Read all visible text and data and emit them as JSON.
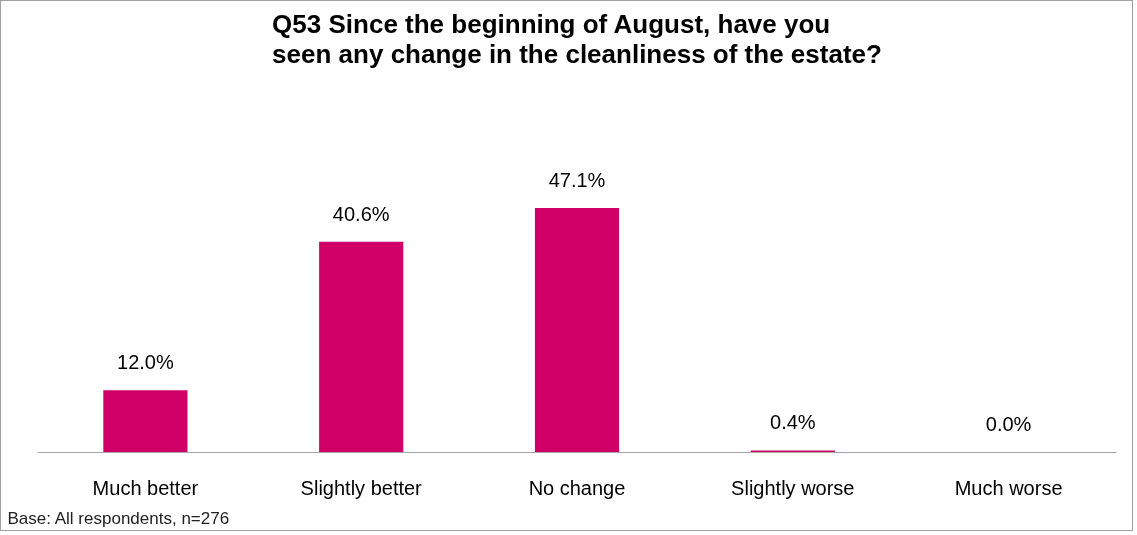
{
  "chart_data": {
    "type": "bar",
    "title": "Q53 Since the beginning of August, have you\nseen any change in the cleanliness of the estate?",
    "categories": [
      "Much better",
      "Slightly better",
      "No change",
      "Slightly worse",
      "Much worse"
    ],
    "values": [
      12.0,
      40.6,
      47.1,
      0.4,
      0.0
    ],
    "value_labels": [
      "12.0%",
      "40.6%",
      "47.1%",
      "0.4%",
      "0.0%"
    ],
    "color": "#d10069",
    "annotations": [
      "Base: All respondents, n=276"
    ]
  }
}
